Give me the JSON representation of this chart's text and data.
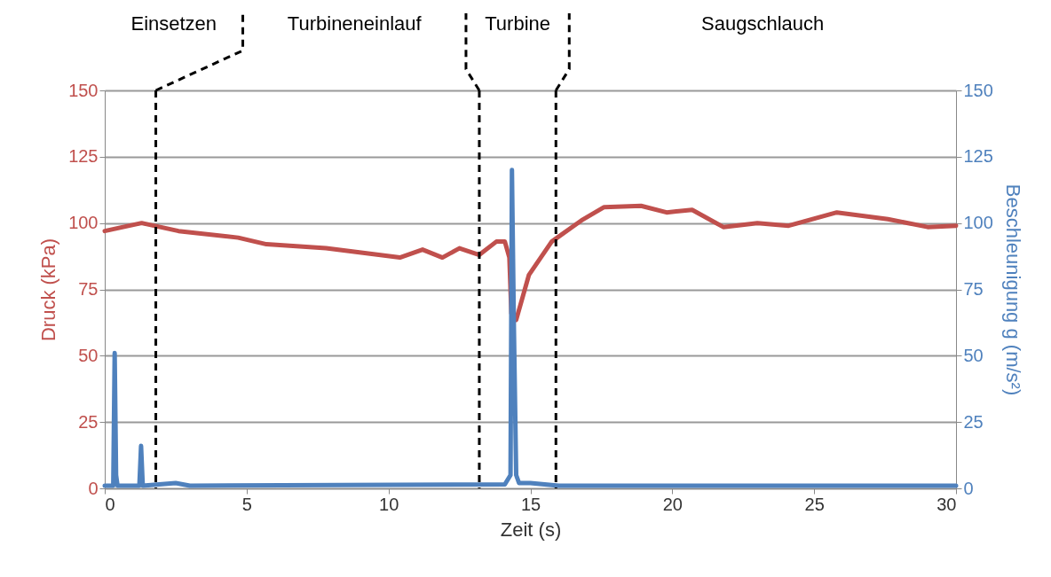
{
  "chart_data": {
    "type": "line",
    "xlabel": "Zeit (s)",
    "ylabel": "Druck (kPa)",
    "y2label": "Beschleunigung g (m/s²)",
    "annotations": [
      "Einsetzen",
      "Turbineneinlauf",
      "Turbine",
      "Saugschlauch"
    ],
    "xlim": [
      0,
      30
    ],
    "xticks": [
      0,
      5,
      10,
      15,
      20,
      25,
      30
    ],
    "ylim": [
      0,
      150
    ],
    "yticks": [
      0,
      25,
      50,
      75,
      100,
      125,
      150
    ],
    "y2lim": [
      0,
      150
    ],
    "y2ticks": [
      0,
      25,
      50,
      75,
      100,
      125,
      150
    ],
    "grid": "y",
    "line_style": "solid",
    "marker": "none",
    "ref_lines": [
      {
        "axis": "x",
        "value": 1.8,
        "color": "#000000",
        "line_style": "dashed"
      },
      {
        "axis": "x",
        "value": 13.2,
        "color": "#000000",
        "line_style": "dashed"
      },
      {
        "axis": "x",
        "value": 15.9,
        "color": "#000000",
        "line_style": "dashed"
      }
    ],
    "series": [
      {
        "color": "#c0504d",
        "x": [
          0,
          1.3,
          2.6,
          4.7,
          5.7,
          7.8,
          10.4,
          11.2,
          11.9,
          12.5,
          13.2,
          13.8,
          14.1,
          14.26,
          14.33,
          14.5,
          14.95,
          15.75,
          16.8,
          17.6,
          18.9,
          19.8,
          20.7,
          21.8,
          23,
          24.1,
          25.8,
          27.6,
          29,
          30
        ],
        "values": [
          97,
          100,
          97,
          94.5,
          92,
          90.5,
          87,
          90,
          87,
          90.5,
          88,
          93,
          93,
          87,
          66,
          63.5,
          80.5,
          93,
          101,
          106,
          106.5,
          104,
          105,
          98.5,
          100,
          99,
          104,
          101.5,
          98.5,
          99
        ]
      },
      {
        "color": "#4f81bd",
        "axis": "y2",
        "x": [
          0,
          0.3,
          0.35,
          0.4,
          0.45,
          1.22,
          1.28,
          1.34,
          2.5,
          3,
          14.1,
          14.3,
          14.35,
          14.42,
          14.5,
          14.6,
          15,
          16,
          30
        ],
        "values": [
          1,
          1,
          51,
          5,
          1,
          1,
          16,
          1,
          2,
          1,
          1.5,
          5,
          120,
          60,
          5,
          2,
          2,
          1,
          1
        ]
      }
    ]
  }
}
